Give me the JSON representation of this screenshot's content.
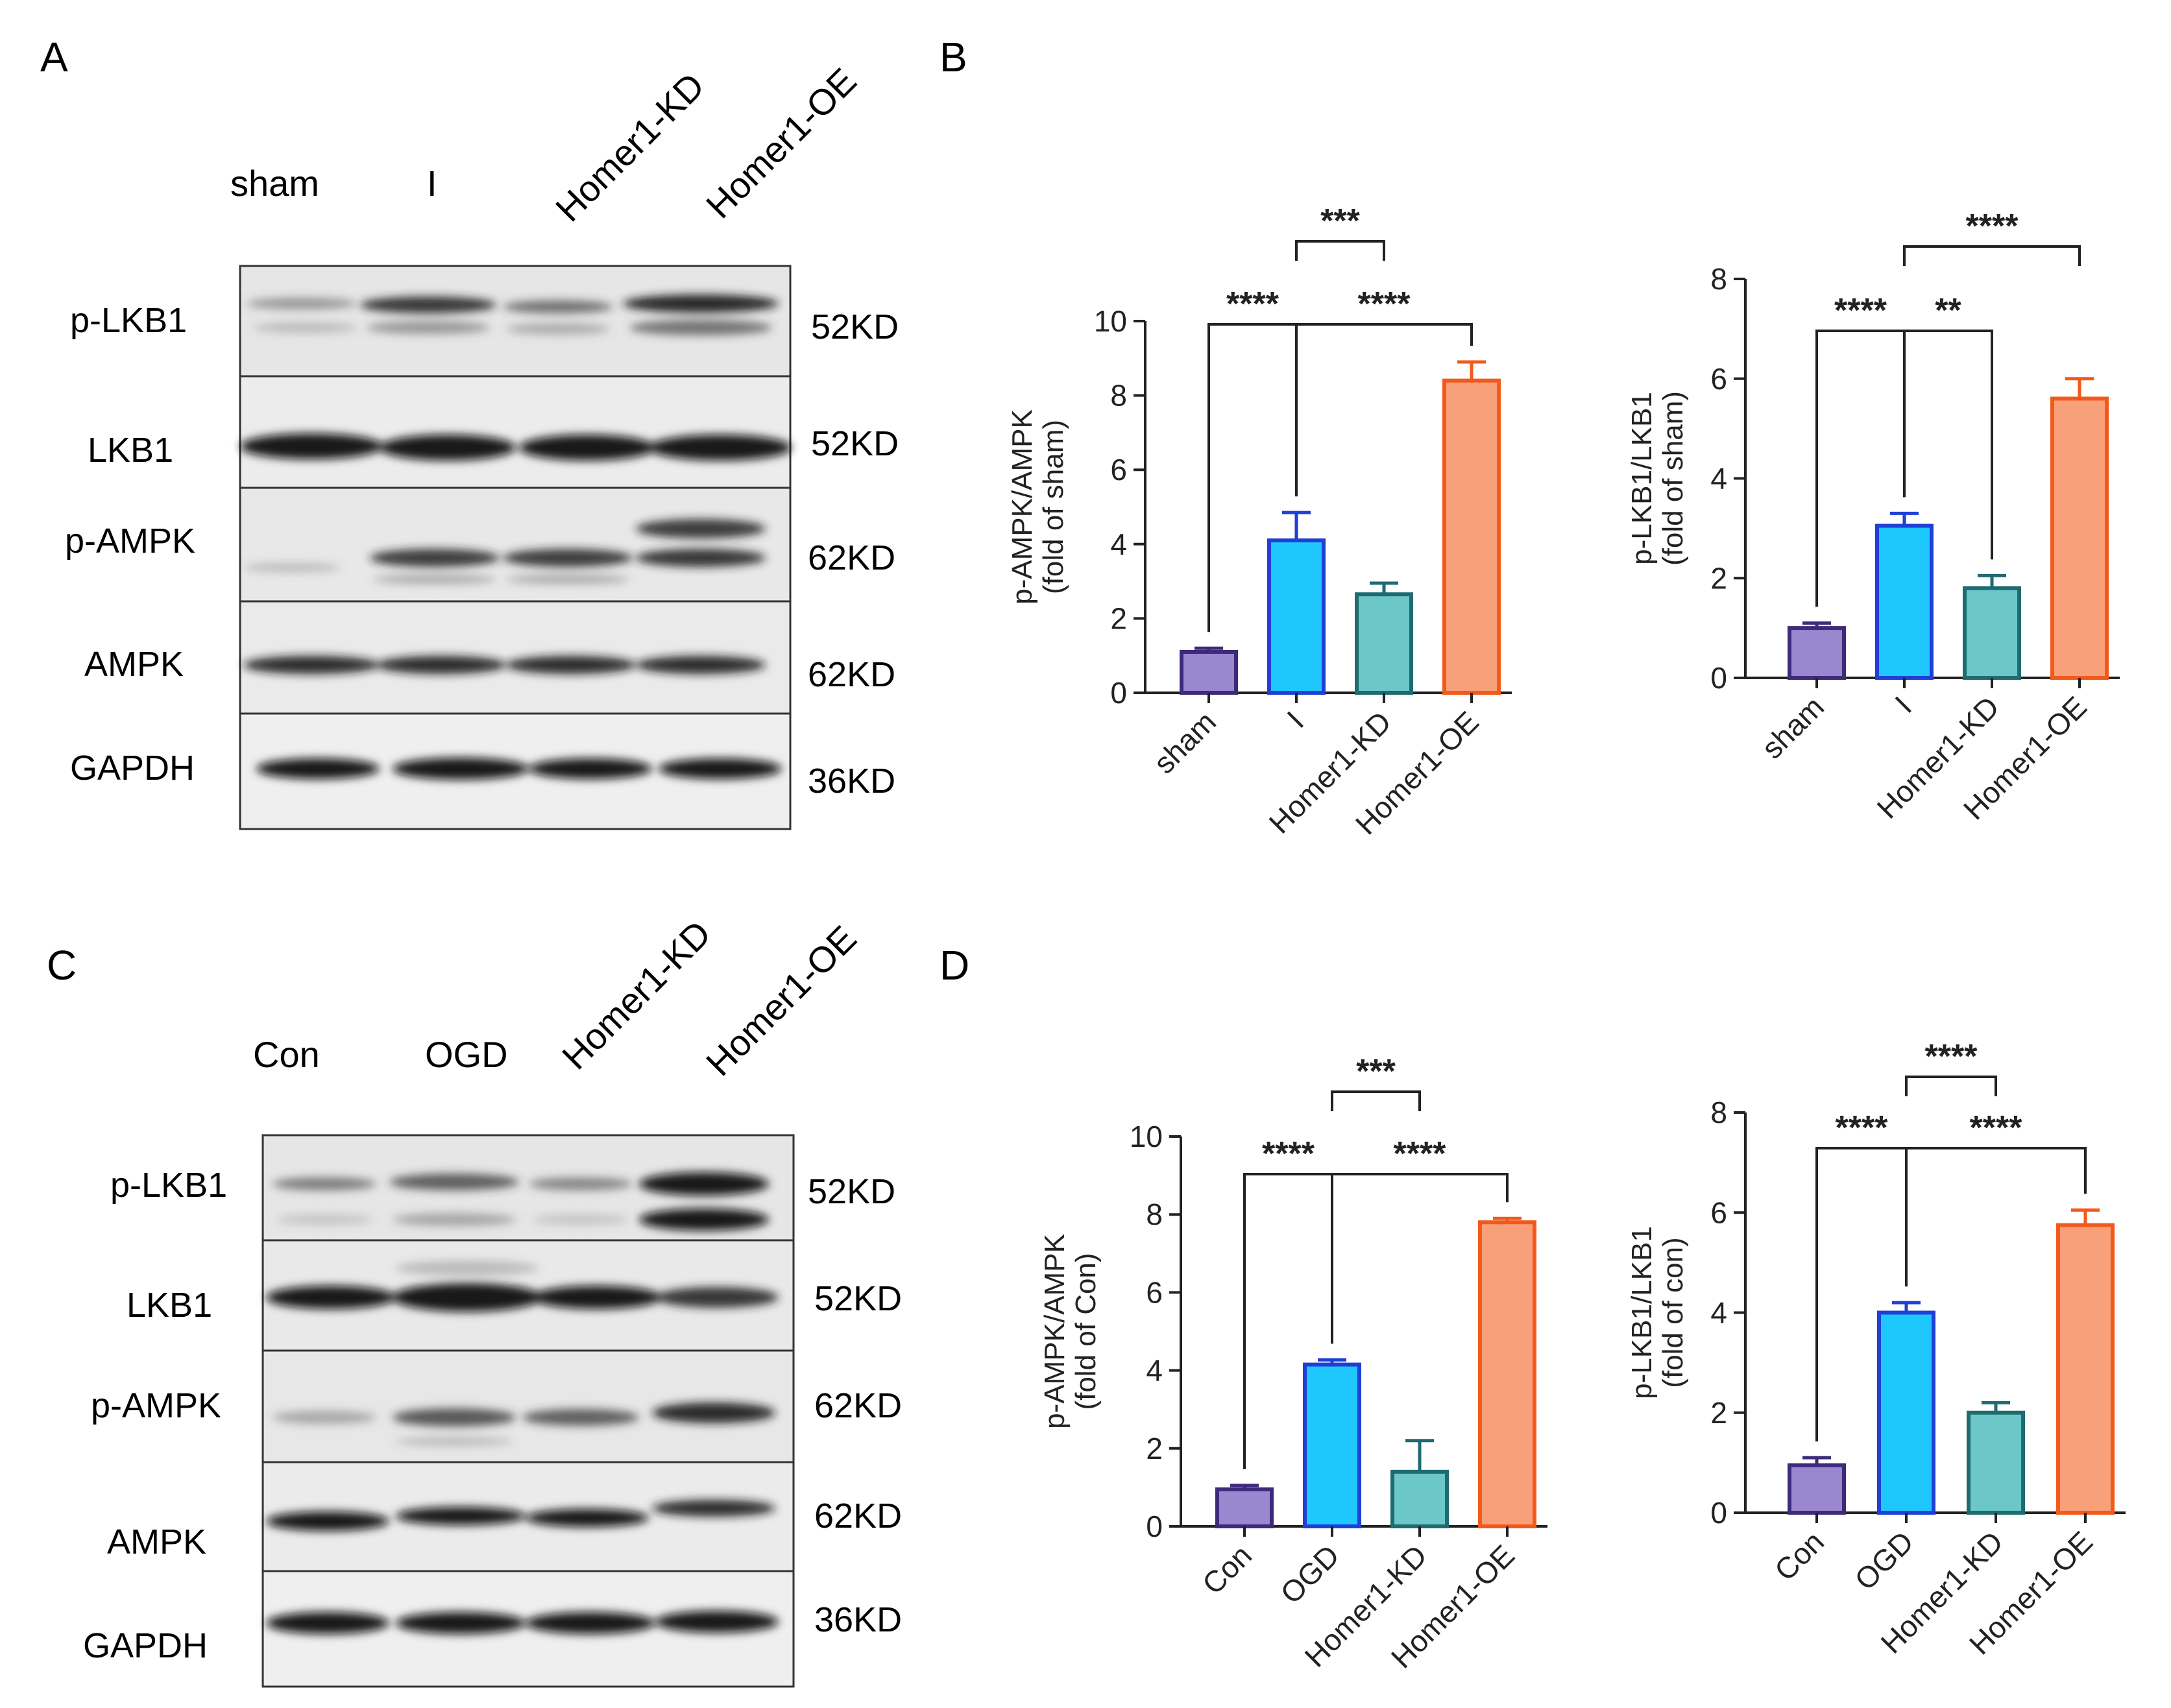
{
  "panels": {
    "A": {
      "letter": "A",
      "lanes": [
        "sham",
        "I",
        "Homer1-KD",
        "Homer1-OE"
      ],
      "blots": [
        {
          "protein": "p-LKB1",
          "size": "52KD"
        },
        {
          "protein": "LKB1",
          "size": "52KD"
        },
        {
          "protein": "p-AMPK",
          "size": "62KD"
        },
        {
          "protein": "AMPK",
          "size": "62KD"
        },
        {
          "protein": "GAPDH",
          "size": "36KD"
        }
      ]
    },
    "B": {
      "letter": "B"
    },
    "C": {
      "letter": "C",
      "lanes": [
        "Con",
        "OGD",
        "Homer1-KD",
        "Homer1-OE"
      ],
      "blots": [
        {
          "protein": "p-LKB1",
          "size": "52KD"
        },
        {
          "protein": "LKB1",
          "size": "52KD"
        },
        {
          "protein": "p-AMPK",
          "size": "62KD"
        },
        {
          "protein": "AMPK",
          "size": "62KD"
        },
        {
          "protein": "GAPDH",
          "size": "36KD"
        }
      ]
    },
    "D": {
      "letter": "D"
    }
  },
  "colors": {
    "purple": "#9b87d0",
    "purple_edge": "#3e2a7a",
    "blue": "#1ec8ff",
    "blue_edge": "#1f3fd6",
    "teal": "#6cc7c9",
    "teal_edge": "#1e6b70",
    "orange": "#f8a07a",
    "orange_edge": "#f25a1c"
  },
  "chart_data": [
    {
      "id": "B1",
      "type": "bar",
      "ylabel": [
        "p-AMPK/AMPK",
        "(fold of sham)"
      ],
      "categories": [
        "sham",
        "I",
        "Homer1-KD",
        "Homer1-OE"
      ],
      "values": [
        1.1,
        4.1,
        2.65,
        8.4
      ],
      "errors": [
        0.1,
        0.75,
        0.3,
        0.5
      ],
      "ylim": [
        0,
        10
      ],
      "yticks": [
        0,
        2,
        4,
        6,
        8,
        10
      ],
      "significance": [
        {
          "from": 0,
          "to": 1,
          "label": "****",
          "level": 0
        },
        {
          "from": 1,
          "to": 3,
          "label": "****",
          "level": 0
        },
        {
          "from": 1,
          "to": 2,
          "label": "***",
          "level": 1
        }
      ]
    },
    {
      "id": "B2",
      "type": "bar",
      "ylabel": [
        "p-LKB1/LKB1",
        "(fold of sham)"
      ],
      "categories": [
        "sham",
        "I",
        "Homer1-KD",
        "Homer1-OE"
      ],
      "values": [
        1.0,
        3.05,
        1.8,
        5.6
      ],
      "errors": [
        0.1,
        0.25,
        0.25,
        0.4
      ],
      "ylim": [
        0,
        8
      ],
      "yticks": [
        0,
        2,
        4,
        6,
        8
      ],
      "significance": [
        {
          "from": 0,
          "to": 1,
          "label": "****",
          "level": 0
        },
        {
          "from": 1,
          "to": 2,
          "label": "**",
          "level": 0
        },
        {
          "from": 1,
          "to": 3,
          "label": "****",
          "level": 1
        }
      ]
    },
    {
      "id": "D1",
      "type": "bar",
      "ylabel": [
        "p-AMPK/AMPK",
        "(fold of Con)"
      ],
      "categories": [
        "Con",
        "OGD",
        "Homer1-KD",
        "Homer1-OE"
      ],
      "values": [
        0.95,
        4.15,
        1.4,
        7.8
      ],
      "errors": [
        0.1,
        0.12,
        0.8,
        0.1
      ],
      "ylim": [
        0,
        10
      ],
      "yticks": [
        0,
        2,
        4,
        6,
        8,
        10
      ],
      "significance": [
        {
          "from": 0,
          "to": 1,
          "label": "****",
          "level": 0
        },
        {
          "from": 1,
          "to": 3,
          "label": "****",
          "level": 0
        },
        {
          "from": 1,
          "to": 2,
          "label": "***",
          "level": 1
        }
      ]
    },
    {
      "id": "D2",
      "type": "bar",
      "ylabel": [
        "p-LKB1/LKB1",
        "(fold of con)"
      ],
      "categories": [
        "Con",
        "OGD",
        "Homer1-KD",
        "Homer1-OE"
      ],
      "values": [
        0.95,
        4.0,
        2.0,
        5.75
      ],
      "errors": [
        0.15,
        0.2,
        0.2,
        0.3
      ],
      "ylim": [
        0,
        8
      ],
      "yticks": [
        0,
        2,
        4,
        6,
        8
      ],
      "significance": [
        {
          "from": 0,
          "to": 1,
          "label": "****",
          "level": 0
        },
        {
          "from": 1,
          "to": 3,
          "label": "****",
          "level": 0
        },
        {
          "from": 1,
          "to": 2,
          "label": "****",
          "level": 1
        }
      ]
    }
  ]
}
